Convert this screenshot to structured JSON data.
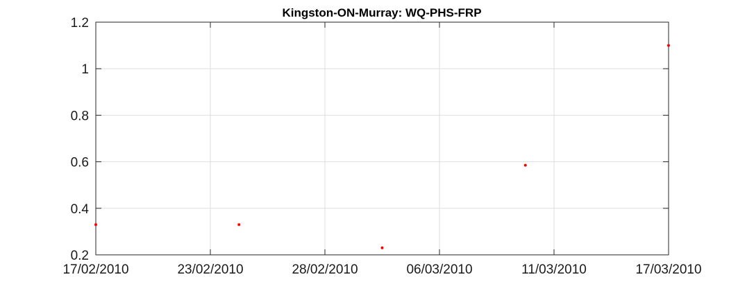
{
  "chart_data": {
    "type": "scatter",
    "title": "Kingston-ON-Murray: WQ-PHS-FRP",
    "xlabel": "",
    "ylabel": "",
    "x_ticks": [
      "17/02/2010",
      "23/02/2010",
      "28/02/2010",
      "06/03/2010",
      "11/03/2010",
      "17/03/2010"
    ],
    "y_ticks": [
      "0.2",
      "0.4",
      "0.6",
      "0.8",
      "1",
      "1.2"
    ],
    "xlim": [
      "2010-02-17",
      "2010-03-17"
    ],
    "ylim": [
      0.2,
      1.2
    ],
    "grid": true,
    "marker_color": "#ff0000",
    "series": [
      {
        "points": [
          {
            "x": "2010-02-17",
            "y": 0.33
          },
          {
            "x": "2010-02-24",
            "y": 0.33
          },
          {
            "x": "2010-03-03",
            "y": 0.23
          },
          {
            "x": "2010-03-10",
            "y": 0.585
          },
          {
            "x": "2010-03-17",
            "y": 1.1
          }
        ]
      }
    ]
  }
}
